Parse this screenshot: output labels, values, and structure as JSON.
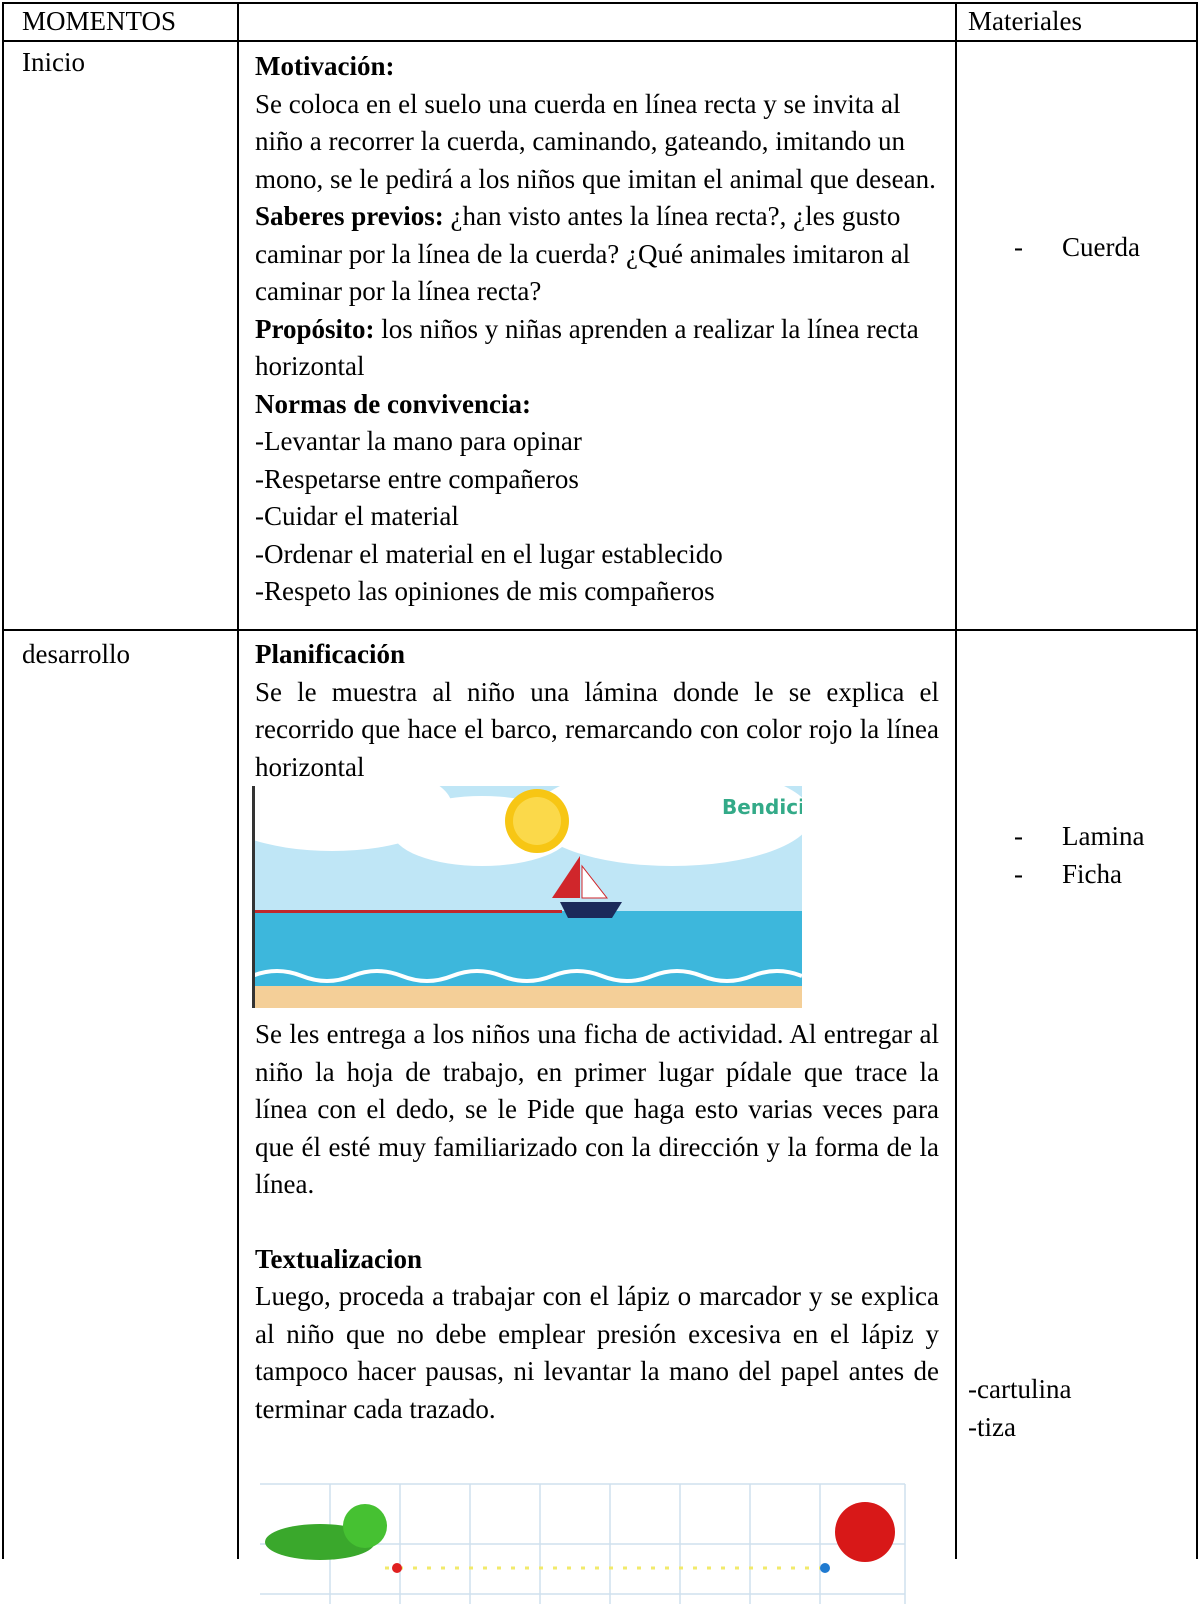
{
  "table": {
    "header": {
      "moments": "MOMENTOS",
      "materials": "Materiales"
    },
    "rows": [
      {
        "moment": "Inicio",
        "content": {
          "motivation_label": "Motivación:",
          "motivation_text": "Se coloca en el suelo una cuerda en línea recta y se invita al niño a recorrer la cuerda, caminando, gateando, imitando un mono, se le pedirá a los niños que imitan el animal que desean.",
          "prior_label": "Saberes previos:",
          "prior_text": "¿han visto antes la línea recta?, ¿les gusto caminar por la línea de la cuerda? ¿Qué animales imitaron al caminar por la línea recta?",
          "purpose_label": "Propósito:",
          "purpose_text": "los niños y niñas aprenden a realizar la línea recta horizontal",
          "norms_label": "Normas de convivencia:",
          "norms": [
            "-Levantar la mano para opinar",
            "-Respetarse entre compañeros",
            "-Cuidar el material",
            "-Ordenar el material en el lugar establecido",
            "-Respeto las opiniones de mis compañeros"
          ]
        },
        "materials": [
          {
            "marker": "-",
            "text": "Cuerda"
          }
        ]
      },
      {
        "moment": "desarrollo",
        "content": {
          "planning_label": "Planificación",
          "planning_text": "Se le muestra al niño una lámina donde le se explica el recorrido que hace el barco, remarcando con color rojo la línea horizontal",
          "image_caption": "Bendici",
          "worksheet_text": "Se les entrega a los niños una ficha de actividad. Al entregar al niño la hoja de trabajo, en primer lugar pídale que trace la línea con el dedo, se le Pide que haga esto varias veces para que él esté muy familiarizado con la dirección y la forma de la línea.",
          "text_label": "Textualizacion",
          "text_text": "Luego, proceda a trabajar con el lápiz o marcador y se explica al niño que no debe emplear presión excesiva en el lápiz y tampoco hacer pausas, ni levantar la mano del papel antes de terminar cada trazado."
        },
        "materials": [
          {
            "marker": "-",
            "text": "Lamina"
          },
          {
            "marker": "-",
            "text": "Ficha"
          }
        ],
        "extra_materials": [
          "-cartulina",
          "-tiza"
        ]
      }
    ]
  }
}
